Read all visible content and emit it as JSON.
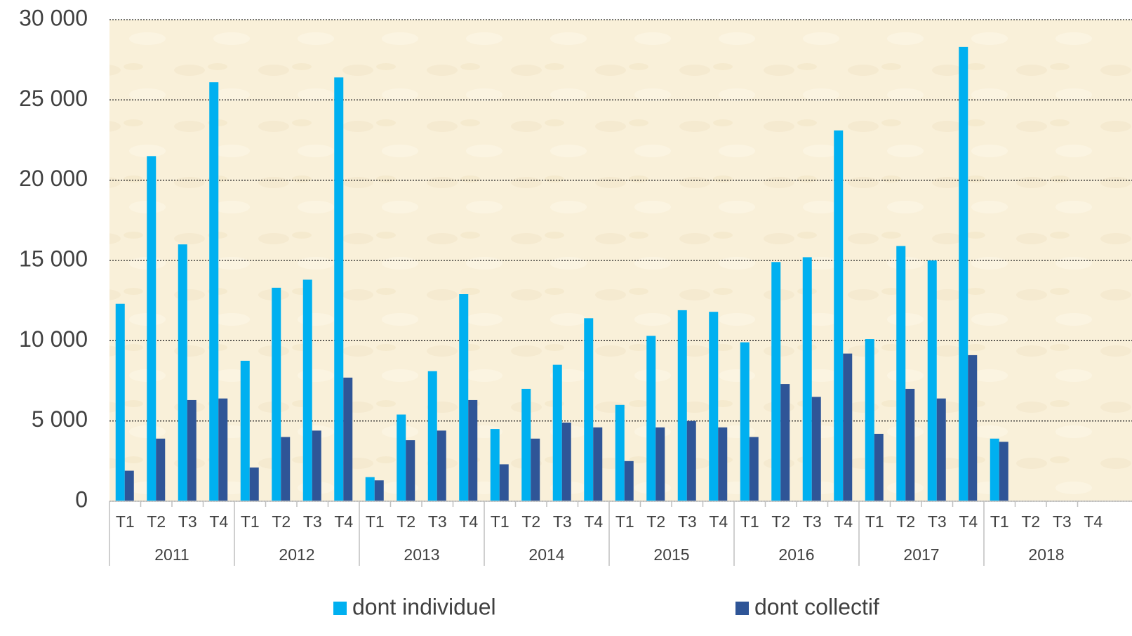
{
  "chart_data": {
    "type": "bar",
    "categories": [
      "T1",
      "T2",
      "T3",
      "T4",
      "T1",
      "T2",
      "T3",
      "T4",
      "T1",
      "T2",
      "T3",
      "T4",
      "T1",
      "T2",
      "T3",
      "T4",
      "T1",
      "T2",
      "T3",
      "T4",
      "T1",
      "T2",
      "T3",
      "T4",
      "T1",
      "T2",
      "T3",
      "T4",
      "T1",
      "T2",
      "T3",
      "T4"
    ],
    "groups": [
      "2011",
      "2012",
      "2013",
      "2014",
      "2015",
      "2016",
      "2017",
      "2018"
    ],
    "series": [
      {
        "name": "dont individuel",
        "color": "#00b0f0",
        "values": [
          12300,
          21500,
          16000,
          26100,
          8750,
          13300,
          13800,
          26400,
          1500,
          5400,
          8100,
          12900,
          4500,
          7000,
          8500,
          11400,
          6000,
          10300,
          11900,
          11800,
          9900,
          14900,
          15200,
          23100,
          10100,
          15900,
          15000,
          28300,
          3900,
          null,
          null,
          null
        ]
      },
      {
        "name": "dont collectif",
        "color": "#2f5597",
        "values": [
          1900,
          3900,
          6300,
          6400,
          2100,
          4000,
          4400,
          7700,
          1300,
          3800,
          4400,
          6300,
          2300,
          3900,
          4900,
          4600,
          2500,
          4600,
          5000,
          4600,
          4000,
          7300,
          6500,
          9200,
          4200,
          7000,
          6400,
          9100,
          3700,
          null,
          null,
          null
        ]
      }
    ],
    "ylim": [
      0,
      30000
    ],
    "yticks": [
      0,
      {
        "value": 5000,
        "label": "5 000"
      },
      {
        "value": 10000,
        "label": "10 000"
      },
      {
        "value": 15000,
        "label": "15 000"
      },
      {
        "value": 20000,
        "label": "20 000"
      },
      {
        "value": 25000,
        "label": "25 000"
      },
      {
        "value": 30000,
        "label": "30 000"
      }
    ],
    "grid": true,
    "legend": "bottom"
  }
}
